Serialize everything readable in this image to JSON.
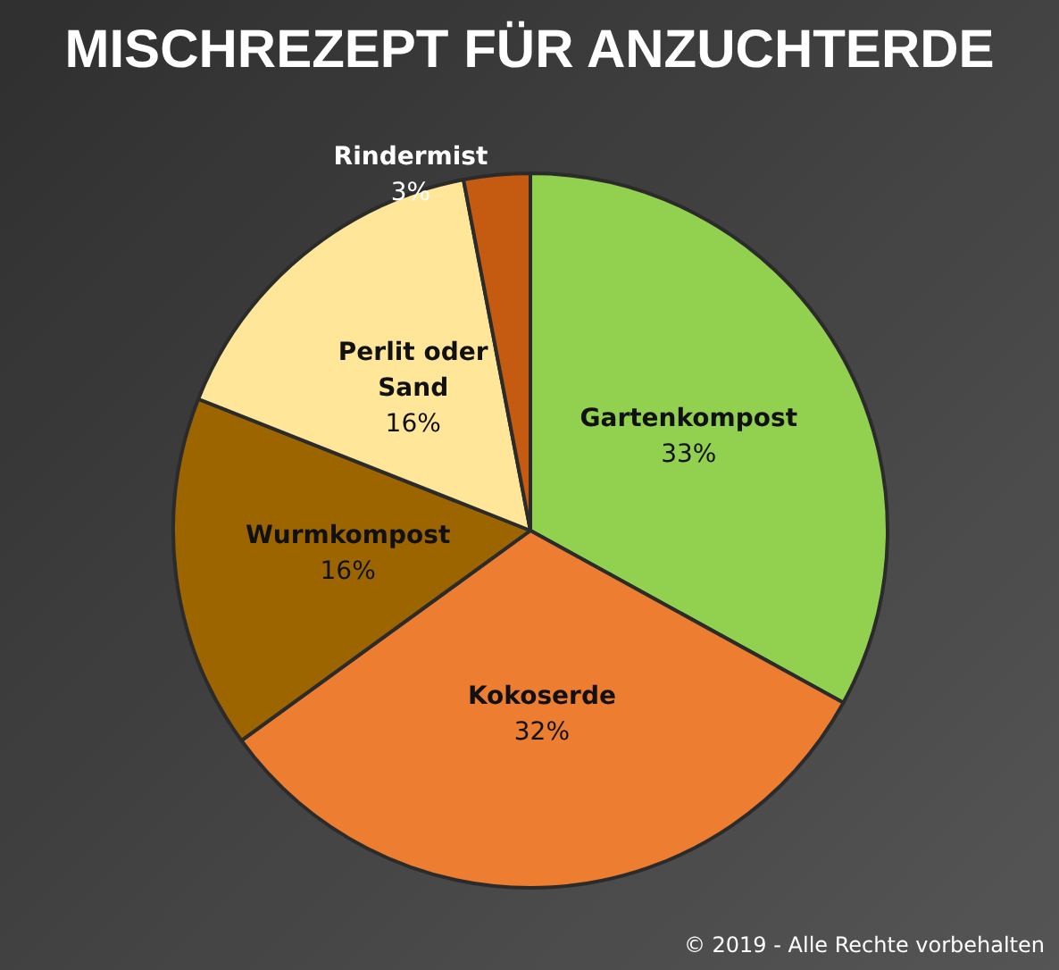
{
  "chart_data": {
    "type": "pie",
    "title": "MISCHREZEPT FÜR ANZUCHTERDE",
    "categories": [
      "Gartenkompost",
      "Kokoserde",
      "Wurmkompost",
      "Perlit oder Sand",
      "Rindermist"
    ],
    "values": [
      33,
      32,
      16,
      16,
      3
    ],
    "colors": [
      "#92d050",
      "#ed7d31",
      "#9c6500",
      "#ffe699",
      "#c55a11"
    ],
    "value_labels": [
      "33%",
      "32%",
      "16%",
      "16%",
      "3%"
    ],
    "annotations": [
      "© 2019 - Alle Rechte vorbehalten"
    ]
  }
}
